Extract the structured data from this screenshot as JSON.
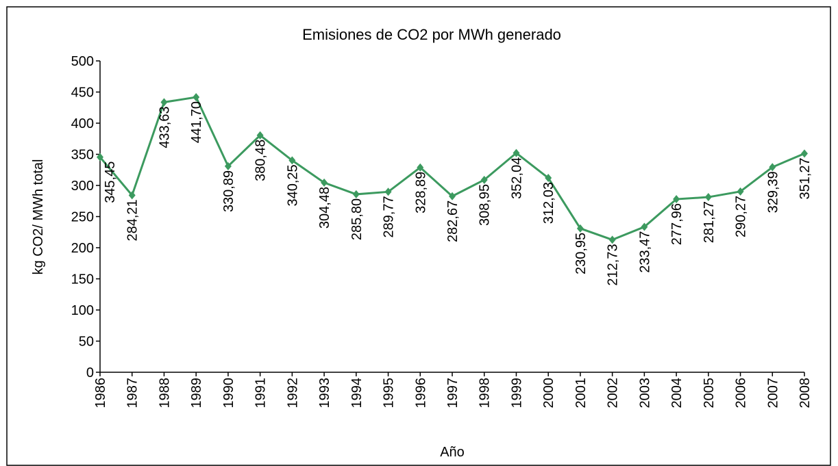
{
  "chart_data": {
    "type": "line",
    "title": "Emisiones de CO2 por MWh generado",
    "x_label": "Año",
    "y_label": "kg CO2/ MWh total",
    "categories": [
      "1986",
      "1987",
      "1988",
      "1989",
      "1990",
      "1991",
      "1992",
      "1993",
      "1994",
      "1995",
      "1996",
      "1997",
      "1998",
      "1999",
      "2000",
      "2001",
      "2002",
      "2003",
      "2004",
      "2005",
      "2006",
      "2007",
      "2008"
    ],
    "series": [
      {
        "name": "kg CO2/ MWh total",
        "color": "#3c9a5f",
        "values": [
          345.45,
          284.21,
          433.63,
          441.7,
          330.89,
          380.48,
          340.25,
          304.48,
          285.8,
          289.77,
          328.89,
          282.67,
          308.95,
          352.04,
          312.03,
          230.95,
          212.73,
          233.47,
          277.96,
          281.27,
          290.27,
          329.39,
          351.27
        ],
        "value_labels": [
          "345,45",
          "284,21",
          "433,63",
          "441,70",
          "330,89",
          "380,48",
          "340,25",
          "304,48",
          "285,80",
          "289,77",
          "328,89",
          "282,67",
          "308,95",
          "352,04",
          "312,03",
          "230,95",
          "212,73",
          "233,47",
          "277,96",
          "281,27",
          "290,27",
          "329,39",
          "351,27"
        ]
      }
    ],
    "ylim": [
      0,
      500
    ],
    "yticks": [
      0,
      50,
      100,
      150,
      200,
      250,
      300,
      350,
      400,
      450,
      500
    ],
    "grid": false
  }
}
